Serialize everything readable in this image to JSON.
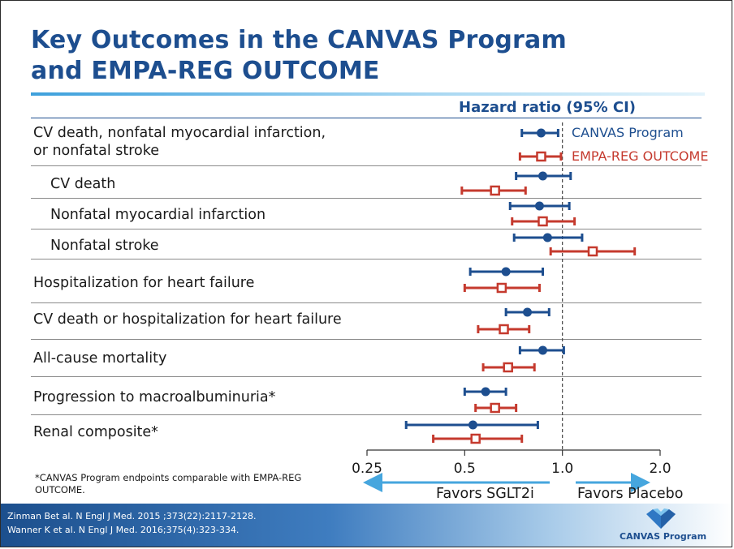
{
  "title_line1": "Key Outcomes in the CANVAS Program",
  "title_line2": "and EMPA-REG OUTCOME",
  "footnote": "*CANVAS Program endpoints comparable with EMPA-REG OUTCOME.",
  "references": [
    "Zinman Bet al. N Engl J Med. 2015 ;373(22):2117-2128.",
    "Wanner K et al. N Engl J Med. 2016;375(4):323-334."
  ],
  "brand": "CANVAS Program",
  "colors": {
    "title": "#1d4e8f",
    "canvas": "#1d4e8f",
    "empa": "#c53a2e",
    "arrow": "#46a6de"
  },
  "chart_data": {
    "type": "forest",
    "header": "Hazard ratio (95% CI)",
    "x_scale": "log",
    "xlim": [
      0.25,
      2.0
    ],
    "ticks": [
      0.25,
      0.5,
      1.0,
      2.0
    ],
    "tick_labels": [
      "0.25",
      "0.5",
      "1.0",
      "2.0"
    ],
    "reference_line": 1.0,
    "favors_left": "Favors SGLT2i",
    "favors_right": "Favors Placebo",
    "series": [
      {
        "name": "CANVAS Program",
        "marker": "filled-circle",
        "color": "#1d4e8f"
      },
      {
        "name": "EMPA-REG OUTCOME",
        "marker": "open-square",
        "color": "#c53a2e"
      }
    ],
    "rows": [
      {
        "label": "CV death, nonfatal myocardial infarction,",
        "label2": "or nonfatal stroke",
        "indent": false,
        "canvas": {
          "hr": 0.86,
          "lo": 0.75,
          "hi": 0.97
        },
        "empa": {
          "hr": 0.86,
          "lo": 0.74,
          "hi": 0.99
        }
      },
      {
        "label": "CV death",
        "indent": true,
        "canvas": {
          "hr": 0.87,
          "lo": 0.72,
          "hi": 1.06
        },
        "empa": {
          "hr": 0.62,
          "lo": 0.49,
          "hi": 0.77
        }
      },
      {
        "label": "Nonfatal myocardial infarction",
        "indent": true,
        "canvas": {
          "hr": 0.85,
          "lo": 0.69,
          "hi": 1.05
        },
        "empa": {
          "hr": 0.87,
          "lo": 0.7,
          "hi": 1.09
        }
      },
      {
        "label": "Nonfatal stroke",
        "indent": true,
        "canvas": {
          "hr": 0.9,
          "lo": 0.71,
          "hi": 1.15
        },
        "empa": {
          "hr": 1.24,
          "lo": 0.92,
          "hi": 1.67
        }
      },
      {
        "label": "Hospitalization for heart failure",
        "indent": false,
        "canvas": {
          "hr": 0.67,
          "lo": 0.52,
          "hi": 0.87
        },
        "empa": {
          "hr": 0.65,
          "lo": 0.5,
          "hi": 0.85
        }
      },
      {
        "label": "CV death or hospitalization for heart failure",
        "indent": false,
        "canvas": {
          "hr": 0.78,
          "lo": 0.67,
          "hi": 0.91
        },
        "empa": {
          "hr": 0.66,
          "lo": 0.55,
          "hi": 0.79
        }
      },
      {
        "label": "All-cause mortality",
        "indent": false,
        "canvas": {
          "hr": 0.87,
          "lo": 0.74,
          "hi": 1.01
        },
        "empa": {
          "hr": 0.68,
          "lo": 0.57,
          "hi": 0.82
        }
      },
      {
        "label": "Progression to macroalbuminuria*",
        "indent": false,
        "canvas": {
          "hr": 0.58,
          "lo": 0.5,
          "hi": 0.67
        },
        "empa": {
          "hr": 0.62,
          "lo": 0.54,
          "hi": 0.72
        }
      },
      {
        "label": "Renal composite*",
        "indent": false,
        "canvas": {
          "hr": 0.53,
          "lo": 0.33,
          "hi": 0.84
        },
        "empa": {
          "hr": 0.54,
          "lo": 0.4,
          "hi": 0.75
        }
      }
    ]
  }
}
